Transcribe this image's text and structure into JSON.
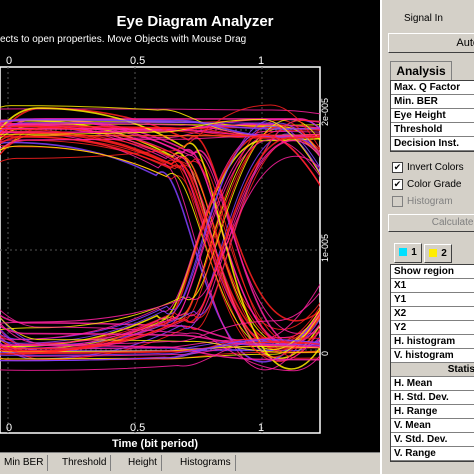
{
  "window": {
    "title": "Eye Diagram Analyzer",
    "subtitle": "ects to open properties.  Move Objects with Mouse Drag"
  },
  "plot": {
    "x_ticks": [
      "0",
      "0.5",
      "1",
      "0",
      "0.5",
      "1"
    ],
    "y_ticks": [
      "2e-005",
      "1e-005",
      "0"
    ],
    "xlabel": "Time (bit period)"
  },
  "tabs": [
    "Min BER",
    "Threshold",
    "Height",
    "Histograms"
  ],
  "side": {
    "signal_label": "Signal In",
    "auto_button": "Auto",
    "analysis_tab": "Analysis",
    "analysis_items": [
      "Max. Q Factor",
      "Min. BER",
      "Eye Height",
      "Threshold",
      "Decision Inst."
    ],
    "invert_colors": "Invert Colors",
    "color_grade": "Color Grade",
    "histogram": "Histogram",
    "calculate_button": "Calculate I",
    "trace_tabs": [
      "1",
      "2"
    ],
    "region_items": [
      "Show region",
      "X1",
      "Y1",
      "X2",
      "Y2",
      "H. histogram",
      "V. histogram"
    ],
    "stats_items": [
      "Statis",
      "H. Mean",
      "H. Std. Dev.",
      "H. Range",
      "V. Mean",
      "V. Std. Dev.",
      "V. Range"
    ]
  },
  "colors": {
    "trace_yellow": "#ffee00",
    "trace_red": "#ff2020",
    "trace_pink": "#ff20a0",
    "trace_purple": "#8040ff",
    "swatch1": "#00e0ff",
    "swatch2": "#ffee00"
  }
}
